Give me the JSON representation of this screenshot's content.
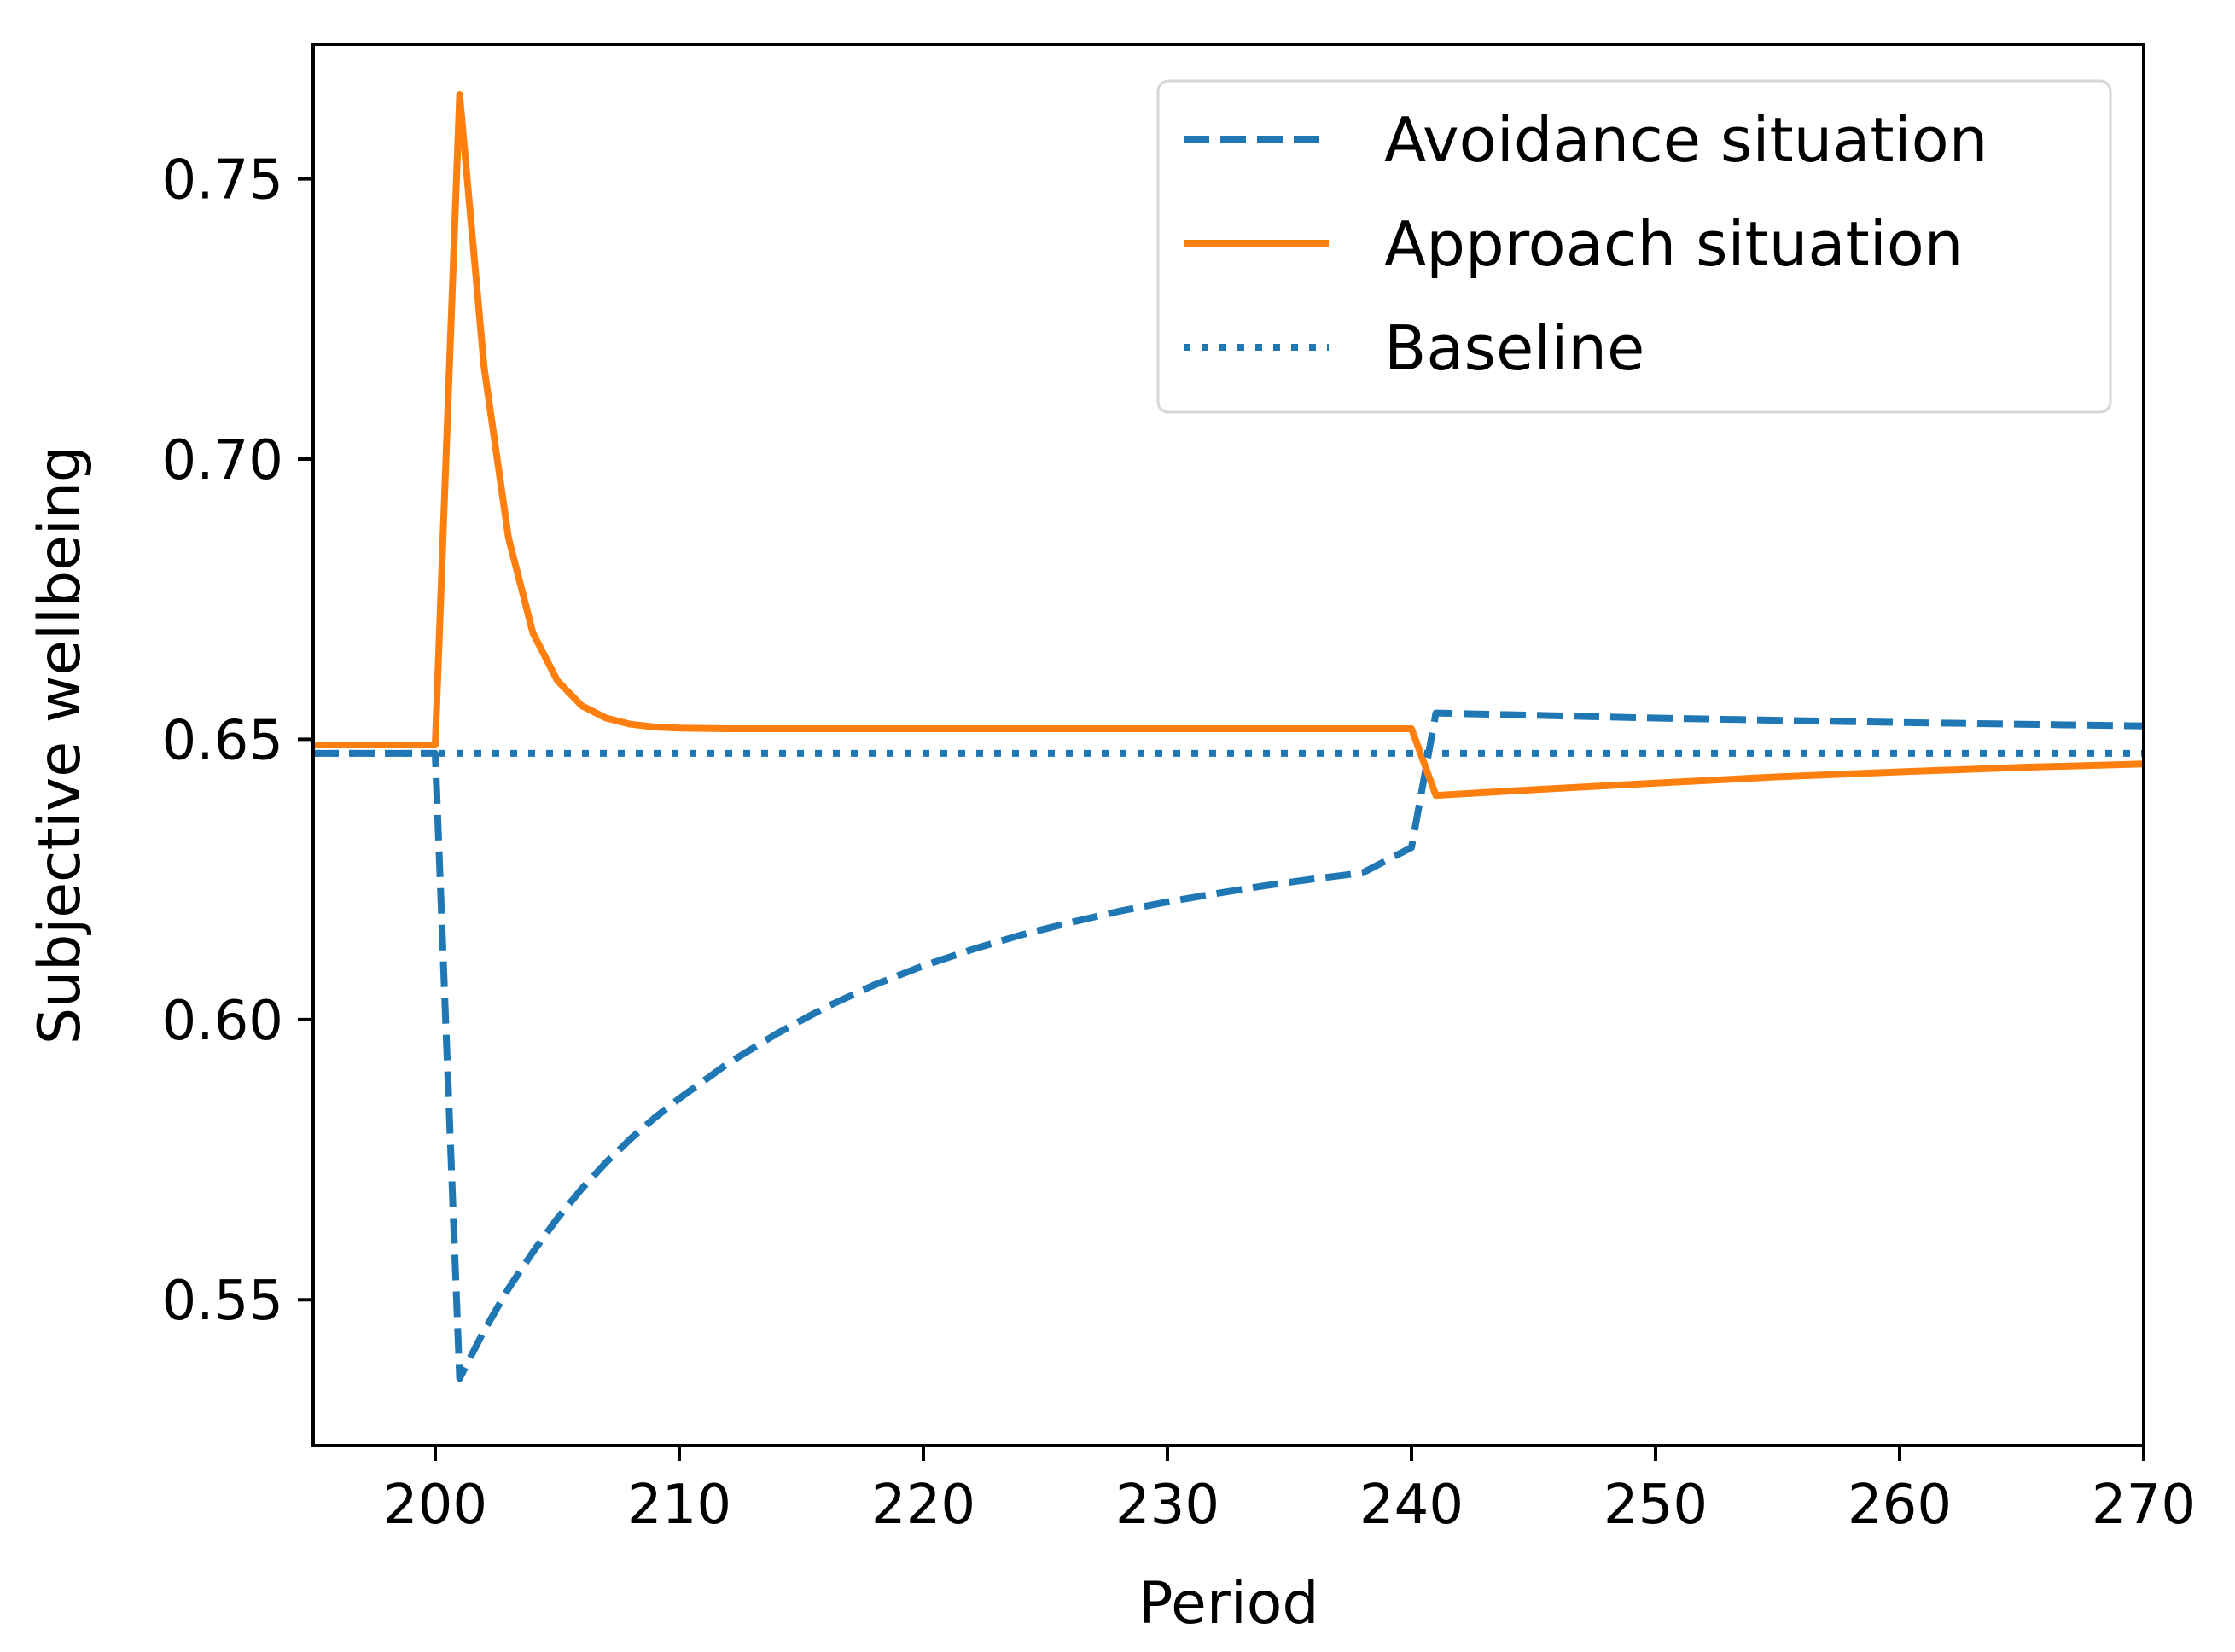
{
  "chart_data": {
    "type": "line",
    "title": "",
    "xlabel": "Period",
    "ylabel": "Subjective wellbeing",
    "xlim": [
      195,
      270
    ],
    "ylim": [
      0.524,
      0.774
    ],
    "xticks": [
      200,
      210,
      220,
      230,
      240,
      250,
      260,
      270
    ],
    "yticks": [
      0.55,
      0.6,
      0.65,
      0.7,
      0.75
    ],
    "ytick_labels": [
      "0.55",
      "0.60",
      "0.65",
      "0.70",
      "0.75"
    ],
    "legend_position": "top-right",
    "grid": false,
    "series": [
      {
        "name": "Avoidance situation",
        "style": "dashed",
        "color": "#1f77b4",
        "x": [
          195,
          200,
          201,
          202,
          203,
          204,
          205,
          206,
          207,
          208,
          209,
          210,
          212,
          214,
          216,
          218,
          220,
          222,
          224,
          226,
          228,
          230,
          232,
          234,
          236,
          238,
          240,
          241,
          245,
          250,
          255,
          260,
          265,
          270
        ],
        "y": [
          0.6475,
          0.6475,
          0.536,
          0.5445,
          0.552,
          0.5585,
          0.5645,
          0.5698,
          0.5745,
          0.5787,
          0.5825,
          0.5859,
          0.5922,
          0.5975,
          0.6022,
          0.6062,
          0.6096,
          0.6125,
          0.6151,
          0.6173,
          0.6193,
          0.621,
          0.6225,
          0.6239,
          0.6251,
          0.6262,
          0.6307,
          0.6547,
          0.6543,
          0.6538,
          0.6534,
          0.653,
          0.6527,
          0.6524
        ]
      },
      {
        "name": "Approach situation",
        "style": "solid",
        "color": "#ff7f0e",
        "x": [
          195,
          200,
          201,
          202,
          203,
          204,
          205,
          206,
          207,
          208,
          209,
          210,
          212,
          215,
          220,
          230,
          240,
          241,
          245,
          250,
          255,
          260,
          265,
          270
        ],
        "y": [
          0.649,
          0.649,
          0.765,
          0.7165,
          0.686,
          0.669,
          0.6605,
          0.656,
          0.6538,
          0.6527,
          0.6522,
          0.652,
          0.6519,
          0.6519,
          0.6519,
          0.6519,
          0.6519,
          0.64,
          0.641,
          0.6422,
          0.6433,
          0.6442,
          0.645,
          0.6456
        ]
      },
      {
        "name": "Baseline",
        "style": "dotted",
        "color": "#1f77b4",
        "x": [
          195,
          270
        ],
        "y": [
          0.6475,
          0.6475
        ]
      }
    ]
  }
}
